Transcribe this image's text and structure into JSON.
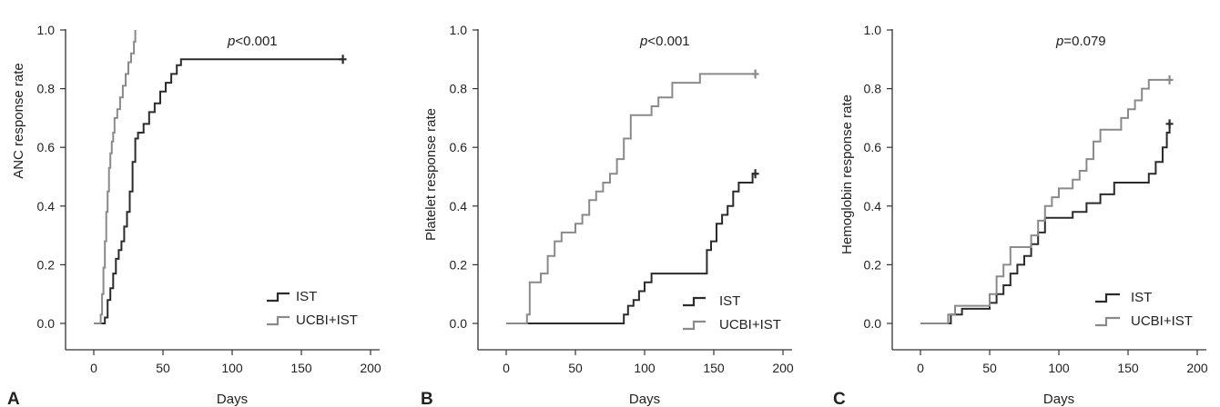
{
  "chart_data": [
    {
      "type": "line",
      "panel_label": "A",
      "title": "",
      "xlabel": "Days",
      "ylabel": "ANC response rate",
      "xlim": [
        0,
        200
      ],
      "ylim": [
        0,
        1.0
      ],
      "xticks": [
        "0",
        "50",
        "100",
        "150",
        "200"
      ],
      "yticks": [
        "0.0",
        "0.2",
        "0.4",
        "0.6",
        "0.8",
        "1.0"
      ],
      "annotation": {
        "italic": "p",
        "rest": "<0.001"
      },
      "legend_position": "bottom-right",
      "series": [
        {
          "name": "IST",
          "color": "#2b2b2b",
          "censored_at_end": true,
          "x": [
            0,
            8,
            10,
            12,
            14,
            16,
            18,
            20,
            22,
            24,
            26,
            28,
            30,
            32,
            34,
            36,
            40,
            44,
            48,
            52,
            56,
            60,
            63,
            180
          ],
          "y": [
            0,
            0.02,
            0.08,
            0.12,
            0.17,
            0.22,
            0.25,
            0.28,
            0.33,
            0.38,
            0.45,
            0.55,
            0.63,
            0.65,
            0.65,
            0.68,
            0.72,
            0.75,
            0.79,
            0.82,
            0.85,
            0.88,
            0.9,
            0.9
          ]
        },
        {
          "name": "UCBI+IST",
          "color": "#8a8a8a",
          "censored_at_end": false,
          "x": [
            0,
            5,
            6,
            7,
            8,
            9,
            10,
            11,
            12,
            13,
            14,
            15,
            17,
            19,
            21,
            23,
            25,
            27,
            29,
            30
          ],
          "y": [
            0,
            0.03,
            0.1,
            0.19,
            0.28,
            0.38,
            0.45,
            0.53,
            0.58,
            0.62,
            0.65,
            0.7,
            0.73,
            0.77,
            0.81,
            0.85,
            0.89,
            0.92,
            0.96,
            1.0
          ]
        }
      ]
    },
    {
      "type": "line",
      "panel_label": "B",
      "title": "",
      "xlabel": "Days",
      "ylabel": "Platelet response rate",
      "xlim": [
        0,
        200
      ],
      "ylim": [
        0,
        1.0
      ],
      "xticks": [
        "0",
        "50",
        "100",
        "150",
        "200"
      ],
      "yticks": [
        "0.0",
        "0.2",
        "0.4",
        "0.6",
        "0.8",
        "1.0"
      ],
      "annotation": {
        "italic": "p",
        "rest": "<0.001"
      },
      "legend_position": "bottom-right",
      "series": [
        {
          "name": "IST",
          "color": "#2b2b2b",
          "censored_at_end": true,
          "x": [
            0,
            85,
            88,
            92,
            96,
            100,
            105,
            120,
            145,
            148,
            152,
            156,
            160,
            164,
            168,
            172,
            178,
            180
          ],
          "y": [
            0,
            0.03,
            0.06,
            0.08,
            0.11,
            0.14,
            0.17,
            0.17,
            0.25,
            0.28,
            0.34,
            0.37,
            0.4,
            0.45,
            0.48,
            0.48,
            0.51,
            0.51
          ]
        },
        {
          "name": "UCBI+IST",
          "color": "#8a8a8a",
          "censored_at_end": true,
          "x": [
            0,
            15,
            17,
            25,
            30,
            35,
            40,
            50,
            55,
            60,
            65,
            70,
            75,
            80,
            85,
            90,
            95,
            105,
            110,
            120,
            125,
            140,
            180
          ],
          "y": [
            0,
            0.03,
            0.14,
            0.17,
            0.23,
            0.28,
            0.31,
            0.34,
            0.37,
            0.42,
            0.45,
            0.48,
            0.51,
            0.56,
            0.63,
            0.71,
            0.71,
            0.74,
            0.77,
            0.82,
            0.82,
            0.85,
            0.85
          ]
        }
      ]
    },
    {
      "type": "line",
      "panel_label": "C",
      "title": "",
      "xlabel": "Days",
      "ylabel": "Hemoglobin response rate",
      "xlim": [
        0,
        200
      ],
      "ylim": [
        0,
        1.0
      ],
      "xticks": [
        "0",
        "50",
        "100",
        "150",
        "200"
      ],
      "yticks": [
        "0.0",
        "0.2",
        "0.4",
        "0.6",
        "0.8",
        "1.0"
      ],
      "annotation": {
        "italic": "p",
        "rest": "=0.079"
      },
      "legend_position": "bottom-right",
      "series": [
        {
          "name": "IST",
          "color": "#2b2b2b",
          "censored_at_end": true,
          "x": [
            0,
            22,
            30,
            45,
            50,
            55,
            60,
            65,
            70,
            75,
            80,
            85,
            90,
            100,
            110,
            120,
            130,
            140,
            150,
            165,
            170,
            175,
            178,
            180
          ],
          "y": [
            0,
            0.03,
            0.05,
            0.05,
            0.07,
            0.1,
            0.13,
            0.17,
            0.2,
            0.23,
            0.27,
            0.31,
            0.36,
            0.36,
            0.38,
            0.41,
            0.44,
            0.48,
            0.48,
            0.51,
            0.55,
            0.6,
            0.65,
            0.68
          ]
        },
        {
          "name": "UCBI+IST",
          "color": "#8a8a8a",
          "censored_at_end": true,
          "x": [
            0,
            20,
            25,
            45,
            50,
            55,
            60,
            65,
            70,
            80,
            85,
            90,
            95,
            100,
            105,
            110,
            115,
            120,
            125,
            130,
            140,
            145,
            150,
            155,
            160,
            165,
            170,
            180
          ],
          "y": [
            0,
            0.03,
            0.06,
            0.06,
            0.1,
            0.16,
            0.2,
            0.26,
            0.26,
            0.3,
            0.35,
            0.4,
            0.43,
            0.46,
            0.46,
            0.49,
            0.52,
            0.56,
            0.62,
            0.66,
            0.66,
            0.7,
            0.73,
            0.76,
            0.8,
            0.83,
            0.83,
            0.83
          ]
        }
      ]
    }
  ]
}
